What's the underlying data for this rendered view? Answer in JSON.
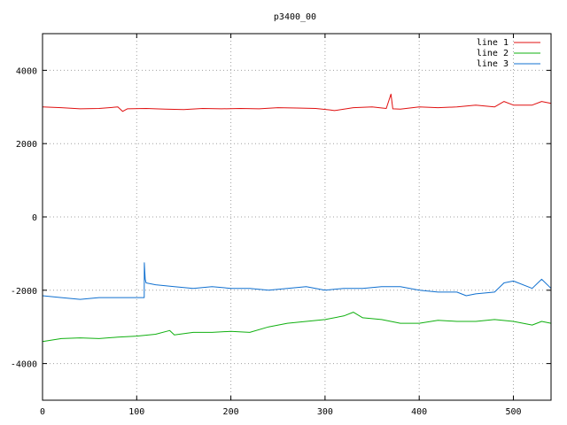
{
  "chart_data": {
    "type": "line",
    "title": "p3400_00",
    "xlabel": "",
    "ylabel": "",
    "xlim": [
      0,
      540
    ],
    "ylim": [
      -5000,
      5000
    ],
    "xticks": [
      0,
      100,
      200,
      300,
      400,
      500
    ],
    "yticks": [
      -4000,
      -2000,
      0,
      2000,
      4000
    ],
    "grid": true,
    "legend_position": "top-right",
    "series": [
      {
        "name": "line 1",
        "color": "#e01010",
        "x": [
          0,
          20,
          40,
          60,
          80,
          85,
          90,
          110,
          130,
          150,
          170,
          190,
          210,
          230,
          250,
          270,
          290,
          305,
          310,
          330,
          350,
          365,
          370,
          372,
          380,
          400,
          420,
          440,
          460,
          480,
          490,
          500,
          520,
          530,
          540
        ],
        "y": [
          3000,
          2980,
          2950,
          2960,
          3000,
          2880,
          2950,
          2960,
          2940,
          2930,
          2960,
          2950,
          2960,
          2950,
          2980,
          2970,
          2960,
          2920,
          2900,
          2980,
          3000,
          2960,
          3350,
          2950,
          2940,
          3000,
          2980,
          3000,
          3050,
          3000,
          3150,
          3050,
          3050,
          3150,
          3100
        ]
      },
      {
        "name": "line 2",
        "color": "#10b010",
        "x": [
          0,
          20,
          40,
          60,
          80,
          100,
          120,
          135,
          140,
          160,
          180,
          200,
          220,
          240,
          260,
          280,
          300,
          320,
          330,
          340,
          360,
          380,
          400,
          420,
          440,
          460,
          480,
          500,
          520,
          530,
          540
        ],
        "y": [
          -3400,
          -3320,
          -3300,
          -3320,
          -3280,
          -3250,
          -3200,
          -3100,
          -3220,
          -3150,
          -3150,
          -3120,
          -3150,
          -3000,
          -2900,
          -2850,
          -2800,
          -2700,
          -2600,
          -2750,
          -2800,
          -2900,
          -2900,
          -2820,
          -2850,
          -2850,
          -2800,
          -2850,
          -2950,
          -2850,
          -2900
        ]
      },
      {
        "name": "line 3",
        "color": "#1070d0",
        "x": [
          0,
          20,
          40,
          60,
          80,
          100,
          108,
          108.1,
          109,
          110,
          120,
          140,
          160,
          180,
          200,
          220,
          240,
          260,
          280,
          300,
          320,
          340,
          360,
          380,
          400,
          420,
          440,
          450,
          460,
          480,
          490,
          500,
          520,
          530,
          540
        ],
        "y": [
          -2150,
          -2200,
          -2250,
          -2200,
          -2200,
          -2200,
          -2200,
          -1250,
          -1700,
          -1800,
          -1850,
          -1900,
          -1950,
          -1900,
          -1950,
          -1950,
          -2000,
          -1950,
          -1900,
          -2000,
          -1950,
          -1950,
          -1900,
          -1900,
          -2000,
          -2050,
          -2050,
          -2150,
          -2100,
          -2050,
          -1800,
          -1750,
          -1950,
          -1700,
          -1950
        ]
      }
    ]
  }
}
